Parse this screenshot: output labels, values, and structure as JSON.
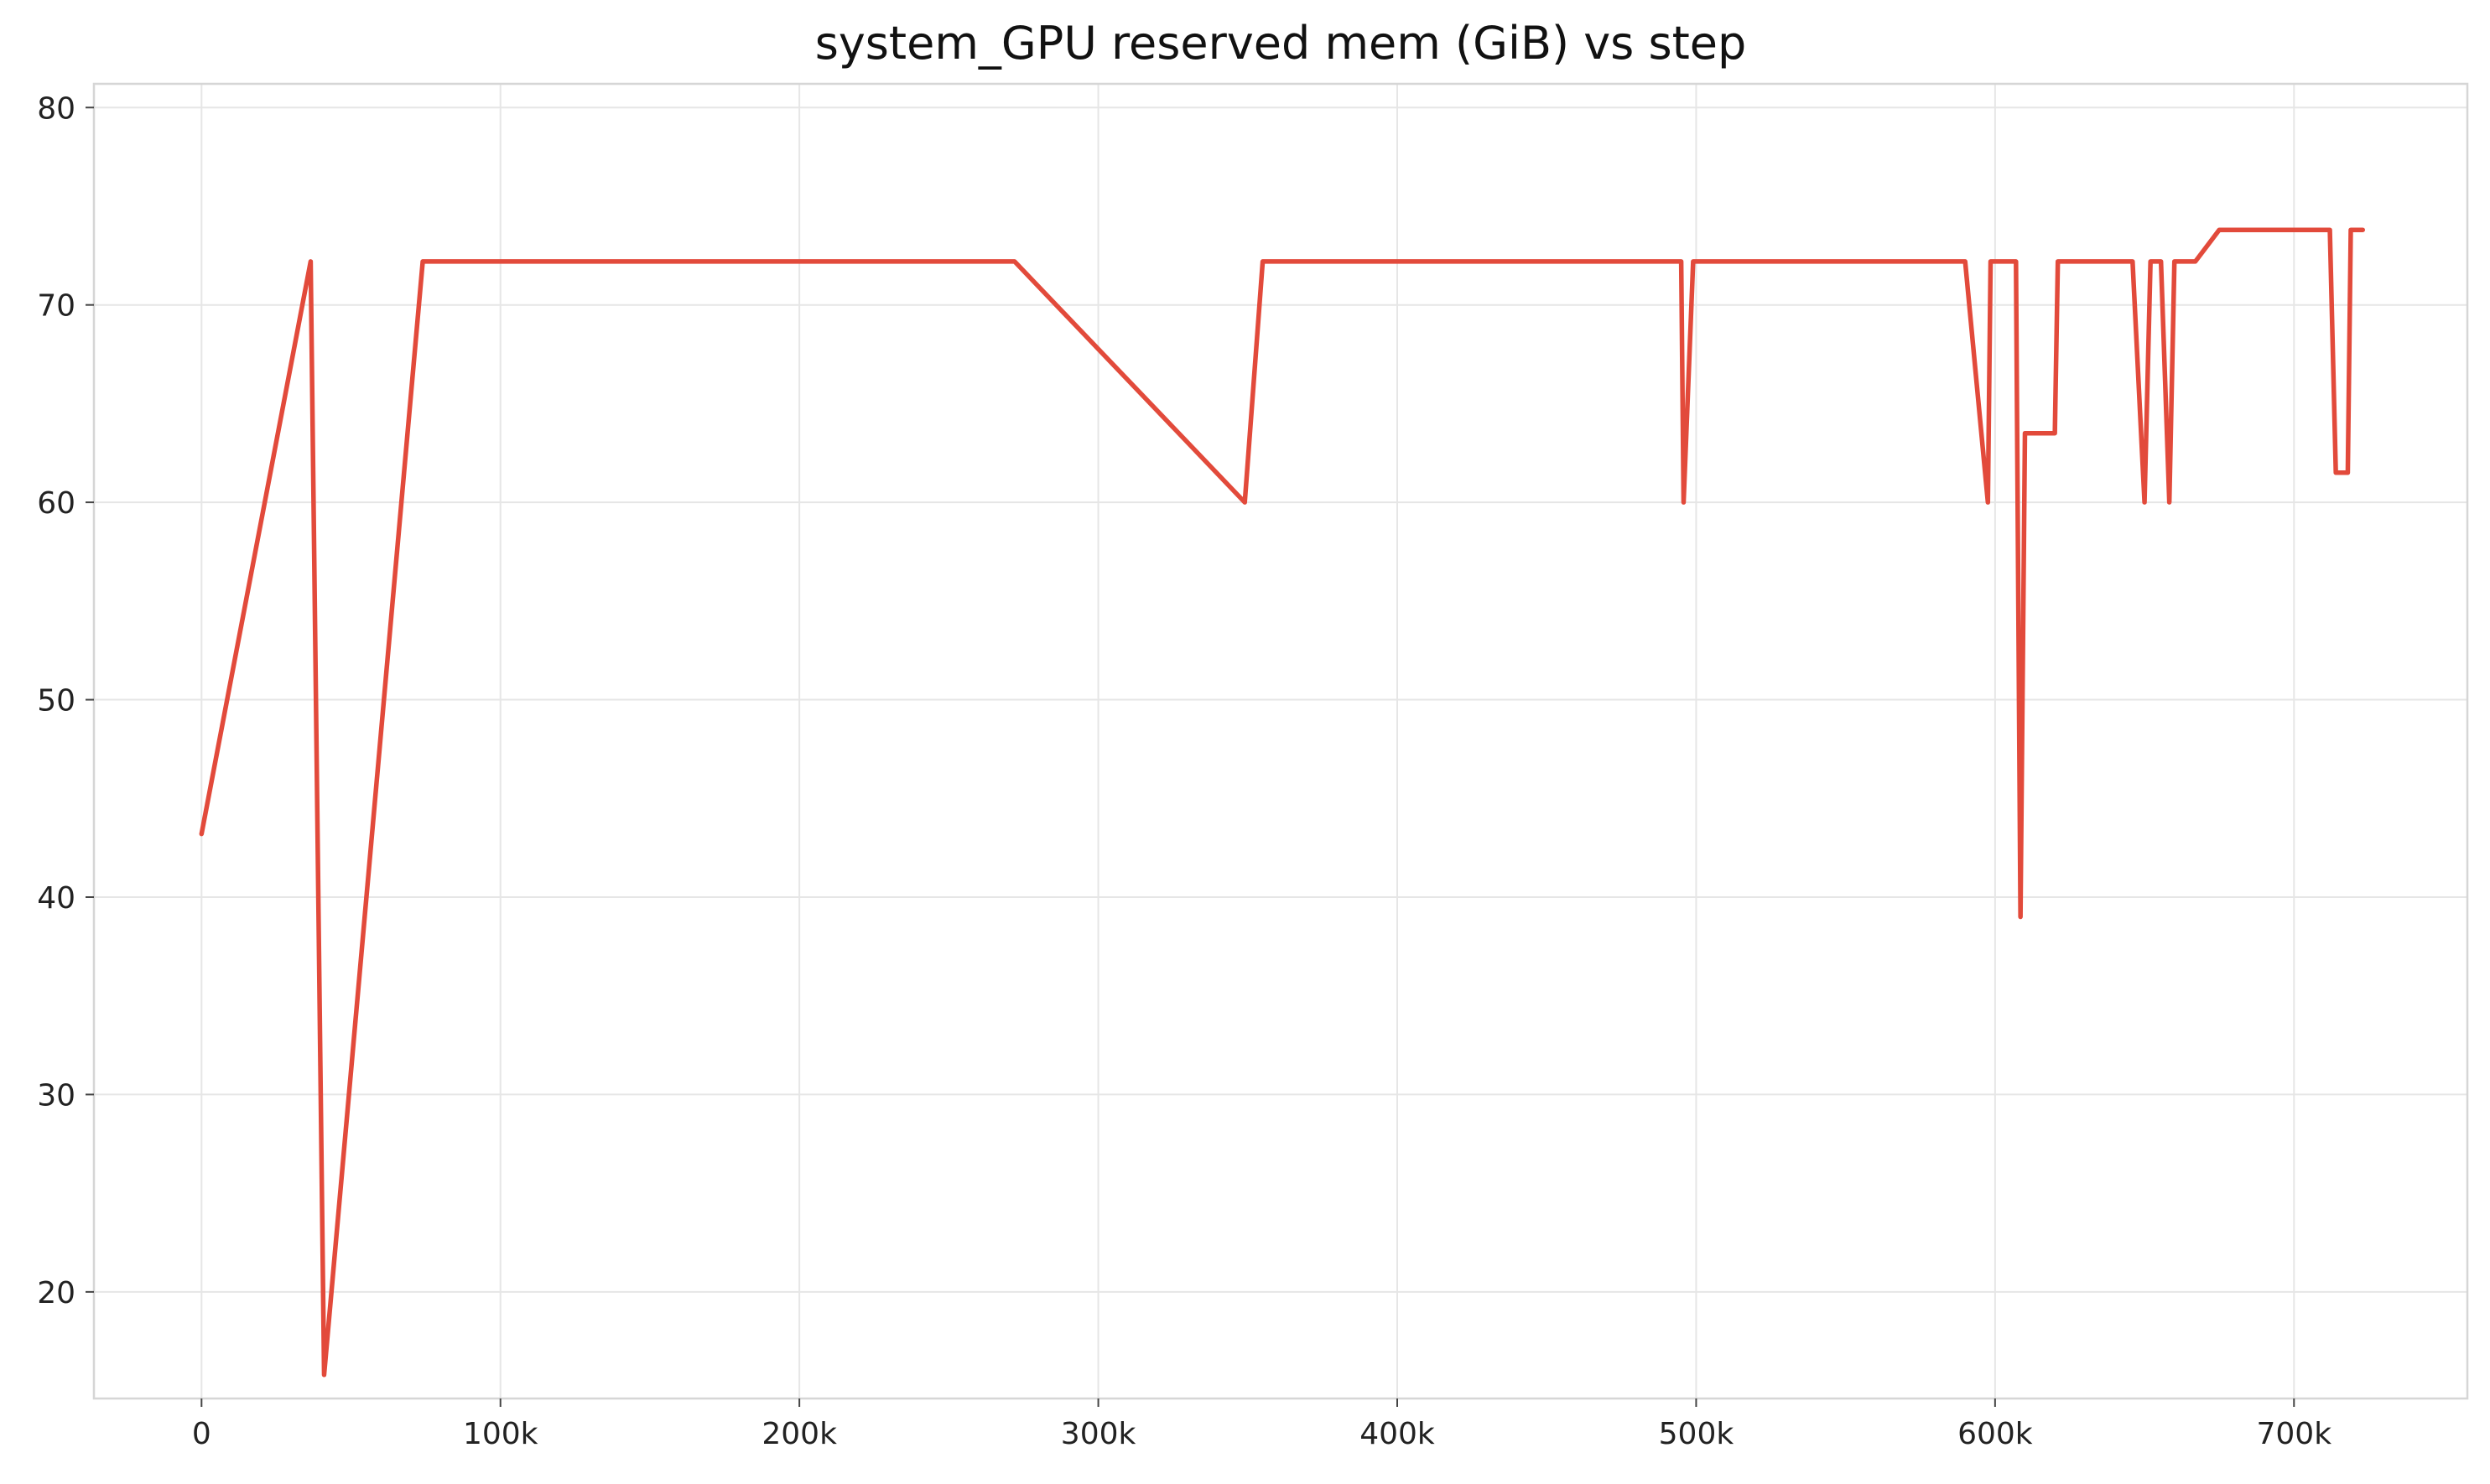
{
  "chart_data": {
    "type": "line",
    "title": "system_GPU reserved mem (GiB) vs step",
    "xlabel": "",
    "ylabel": "",
    "xlim": [
      -36000,
      758000
    ],
    "ylim": [
      14.6,
      81.2
    ],
    "grid": true,
    "x_ticks": [
      {
        "value": 0,
        "label": "0"
      },
      {
        "value": 100000,
        "label": "100k"
      },
      {
        "value": 200000,
        "label": "200k"
      },
      {
        "value": 300000,
        "label": "300k"
      },
      {
        "value": 400000,
        "label": "400k"
      },
      {
        "value": 500000,
        "label": "500k"
      },
      {
        "value": 600000,
        "label": "600k"
      },
      {
        "value": 700000,
        "label": "700k"
      }
    ],
    "y_ticks": [
      {
        "value": 20,
        "label": "20"
      },
      {
        "value": 30,
        "label": "30"
      },
      {
        "value": 40,
        "label": "40"
      },
      {
        "value": 50,
        "label": "50"
      },
      {
        "value": 60,
        "label": "60"
      },
      {
        "value": 70,
        "label": "70"
      },
      {
        "value": 80,
        "label": "80"
      }
    ],
    "series_color": "#e24a3b",
    "x": [
      0,
      36500,
      41000,
      74000,
      272000,
      349000,
      355000,
      495000,
      495800,
      499000,
      590000,
      597600,
      598500,
      607000,
      608500,
      610000,
      620000,
      621000,
      646000,
      650000,
      652000,
      655500,
      658300,
      660000,
      667000,
      675000,
      712000,
      714000,
      718000,
      719000,
      723000
    ],
    "series": [
      {
        "values": [
          43.2,
          72.2,
          15.8,
          72.2,
          72.2,
          60.0,
          72.2,
          72.2,
          60.0,
          72.2,
          72.2,
          60.0,
          72.2,
          72.2,
          39.0,
          63.5,
          63.5,
          72.2,
          72.2,
          60.0,
          72.2,
          72.2,
          60.0,
          72.2,
          72.2,
          73.8,
          73.8,
          61.5,
          61.5,
          73.8,
          73.8
        ]
      }
    ]
  }
}
